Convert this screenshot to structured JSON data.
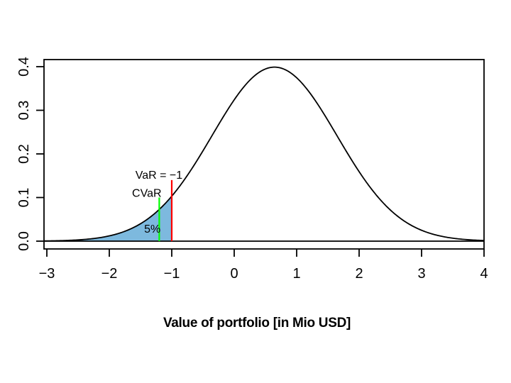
{
  "chart_data": {
    "type": "line",
    "title": "",
    "xlabel": "Value of portfolio [in Mio USD]",
    "ylabel": "",
    "xlim": [
      -3,
      4
    ],
    "ylim": [
      0,
      0.4
    ],
    "grid": false,
    "legend": false,
    "x_tick_values": [
      -3,
      -2,
      -1,
      0,
      1,
      2,
      3,
      4
    ],
    "x_tick_labels": [
      "−3",
      "−2",
      "−1",
      "0",
      "1",
      "2",
      "3",
      "4"
    ],
    "y_tick_values": [
      0,
      0.1,
      0.2,
      0.3,
      0.4
    ],
    "y_tick_labels": [
      "0.0",
      "0.1",
      "0.2",
      "0.3",
      "0.4"
    ],
    "curve": {
      "distribution": "normal",
      "mean": 0.645,
      "sd": 1,
      "peak_density": 0.3989,
      "color": "#000000",
      "x_range": [
        -3.045,
        4
      ]
    },
    "baseline": {
      "y": 0,
      "color": "#000000"
    },
    "shaded_tail": {
      "x_from": -3.045,
      "x_to": -1,
      "fill_color": "#7DB9DE",
      "probability_label": "5%",
      "label_color": "#0000ff",
      "label_x": -1.31,
      "label_y": 0.0195
    },
    "var_line": {
      "x": -1,
      "top": 0.14,
      "color": "#ff0000",
      "label": "VaR = −1",
      "label_x": -1.205,
      "label_y": 0.143
    },
    "cvar_line": {
      "x": -1.2,
      "top": 0.1,
      "color": "#00ff00",
      "label": "CVaR",
      "label_x": -1.4,
      "label_y": 0.102
    }
  }
}
